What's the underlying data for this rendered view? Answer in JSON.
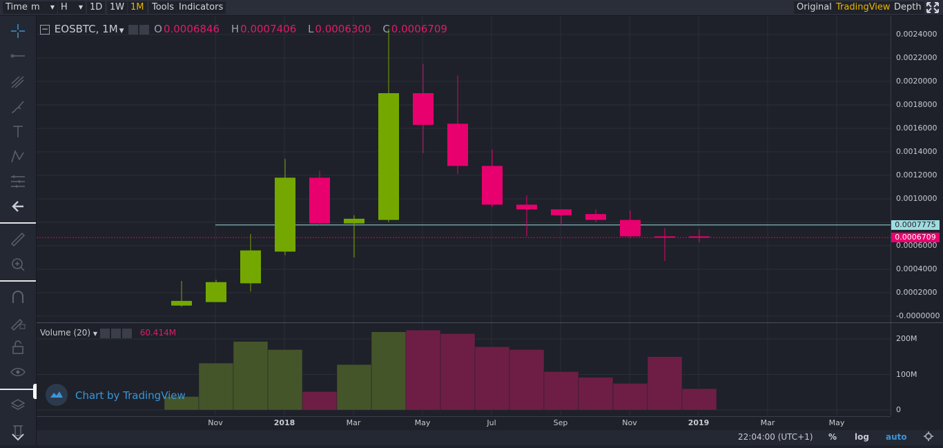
{
  "toolbar": {
    "time_label": "Time",
    "minute_select": "m",
    "hour_select": "H",
    "intervals": [
      "1D",
      "1W",
      "1M"
    ],
    "active_interval": "1M",
    "tools_label": "Tools",
    "indicators_label": "Indicators",
    "view_modes": [
      "Original",
      "TradingView",
      "Depth"
    ],
    "active_view": "TradingView"
  },
  "legend": {
    "symbol": "EOSBTC, 1M",
    "open_label": "O",
    "open": "0.0006846",
    "high_label": "H",
    "high": "0.0007406",
    "low_label": "L",
    "low": "0.0006300",
    "close_label": "C",
    "close": "0.0006709"
  },
  "volume_legend": {
    "label": "Volume (20)",
    "value": "60.414M"
  },
  "price_scale": [
    "0.0024000",
    "0.0022000",
    "0.0020000",
    "0.0018000",
    "0.0016000",
    "0.0014000",
    "0.0012000",
    "0.0010000",
    "0.0006000",
    "0.0004000",
    "0.0002000",
    "-0.0000000"
  ],
  "price_badges": {
    "horizontal_line": "0.0007775",
    "last_price": "0.0006709"
  },
  "volume_scale": [
    "200M",
    "100M",
    "0"
  ],
  "time_axis": [
    {
      "label": "Nov",
      "bold": false
    },
    {
      "label": "2018",
      "bold": true
    },
    {
      "label": "Mar",
      "bold": false
    },
    {
      "label": "May",
      "bold": false
    },
    {
      "label": "Jul",
      "bold": false
    },
    {
      "label": "Sep",
      "bold": false
    },
    {
      "label": "Nov",
      "bold": false
    },
    {
      "label": "2019",
      "bold": true
    },
    {
      "label": "Mar",
      "bold": false
    },
    {
      "label": "May",
      "bold": false
    }
  ],
  "bottom_bar": {
    "clock": "22:04:00 (UTC+1)",
    "percent": "%",
    "log": "log",
    "auto": "auto"
  },
  "brand": "Chart by TradingView",
  "colors": {
    "up": "#74a800",
    "down": "#e8006f",
    "vol_up": "#45552a",
    "vol_down": "#6e1e45",
    "hline": "#9fdce0",
    "accent": "#e8b500"
  },
  "chart_data": {
    "type": "candlestick",
    "candles": [
      {
        "open": 9e-05,
        "high": 0.0003,
        "low": 8e-05,
        "close": 0.00013
      },
      {
        "open": 0.00012,
        "high": 0.00031,
        "low": 0.00012,
        "close": 0.00029
      },
      {
        "open": 0.00028,
        "high": 0.0007,
        "low": 0.00021,
        "close": 0.00056
      },
      {
        "open": 0.00055,
        "high": 0.00134,
        "low": 0.00052,
        "close": 0.00118
      },
      {
        "open": 0.00118,
        "high": 0.00124,
        "low": 0.00077,
        "close": 0.00079
      },
      {
        "open": 0.00079,
        "high": 0.00086,
        "low": 0.0005,
        "close": 0.00083
      },
      {
        "open": 0.00082,
        "high": 0.00245,
        "low": 0.0008,
        "close": 0.0019
      },
      {
        "open": 0.0019,
        "high": 0.00215,
        "low": 0.00139,
        "close": 0.00163
      },
      {
        "open": 0.00164,
        "high": 0.00205,
        "low": 0.00121,
        "close": 0.00128
      },
      {
        "open": 0.00128,
        "high": 0.00142,
        "low": 0.00093,
        "close": 0.00095
      },
      {
        "open": 0.00095,
        "high": 0.00103,
        "low": 0.00068,
        "close": 0.00091
      },
      {
        "open": 0.00091,
        "high": 0.0009,
        "low": 0.00077,
        "close": 0.00086
      },
      {
        "open": 0.00087,
        "high": 0.00091,
        "low": 0.0008,
        "close": 0.00082
      },
      {
        "open": 0.00082,
        "high": 0.0009,
        "low": 0.00067,
        "close": 0.00068
      },
      {
        "open": 0.00068,
        "high": 0.00075,
        "low": 0.00047,
        "close": 0.00067
      },
      {
        "open": 0.00068,
        "high": 0.00074,
        "low": 0.00063,
        "close": 0.00067
      }
    ],
    "volume": [
      38,
      132,
      193,
      170,
      52,
      128,
      220,
      225,
      215,
      178,
      170,
      108,
      92,
      75,
      150,
      60
    ],
    "horizontal_line": 0.0007775,
    "ylim": [
      0,
      0.00245
    ]
  }
}
